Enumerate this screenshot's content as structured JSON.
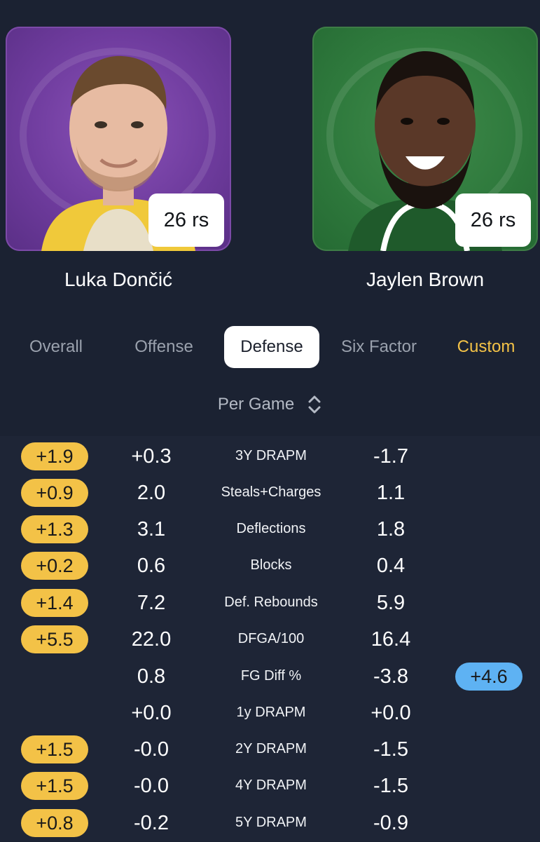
{
  "players": [
    {
      "name": "Luka Dončić",
      "badge": "26 rs",
      "team_color": "#6f3c9e"
    },
    {
      "name": "Jaylen Brown",
      "badge": "26 rs",
      "team_color": "#2f7a3d"
    }
  ],
  "tabs": {
    "overall": "Overall",
    "offense": "Offense",
    "defense": "Defense",
    "six_factor": "Six Factor",
    "custom": "Custom",
    "active": "Defense"
  },
  "mode_selector": {
    "label": "Per Game",
    "icon": "chevron-up-down-icon"
  },
  "colors": {
    "background": "#1b2232",
    "left_advantage": "#f3c247",
    "right_advantage": "#5eb2f3",
    "custom_tab": "#f3c247"
  },
  "stats": [
    {
      "label": "3Y DRAPM",
      "left": "+0.3",
      "right": "-1.7",
      "diff_left": "+1.9",
      "diff_right": ""
    },
    {
      "label": "Steals+Charges",
      "left": "2.0",
      "right": "1.1",
      "diff_left": "+0.9",
      "diff_right": ""
    },
    {
      "label": "Deflections",
      "left": "3.1",
      "right": "1.8",
      "diff_left": "+1.3",
      "diff_right": ""
    },
    {
      "label": "Blocks",
      "left": "0.6",
      "right": "0.4",
      "diff_left": "+0.2",
      "diff_right": ""
    },
    {
      "label": "Def. Rebounds",
      "left": "7.2",
      "right": "5.9",
      "diff_left": "+1.4",
      "diff_right": ""
    },
    {
      "label": "DFGA/100",
      "left": "22.0",
      "right": "16.4",
      "diff_left": "+5.5",
      "diff_right": ""
    },
    {
      "label": "FG Diff %",
      "left": "0.8",
      "right": "-3.8",
      "diff_left": "",
      "diff_right": "+4.6"
    },
    {
      "label": "1y DRAPM",
      "left": "+0.0",
      "right": "+0.0",
      "diff_left": "",
      "diff_right": ""
    },
    {
      "label": "2Y DRAPM",
      "left": "-0.0",
      "right": "-1.5",
      "diff_left": "+1.5",
      "diff_right": ""
    },
    {
      "label": "4Y DRAPM",
      "left": "-0.0",
      "right": "-1.5",
      "diff_left": "+1.5",
      "diff_right": ""
    },
    {
      "label": "5Y DRAPM",
      "left": "-0.2",
      "right": "-0.9",
      "diff_left": "+0.8",
      "diff_right": ""
    }
  ]
}
